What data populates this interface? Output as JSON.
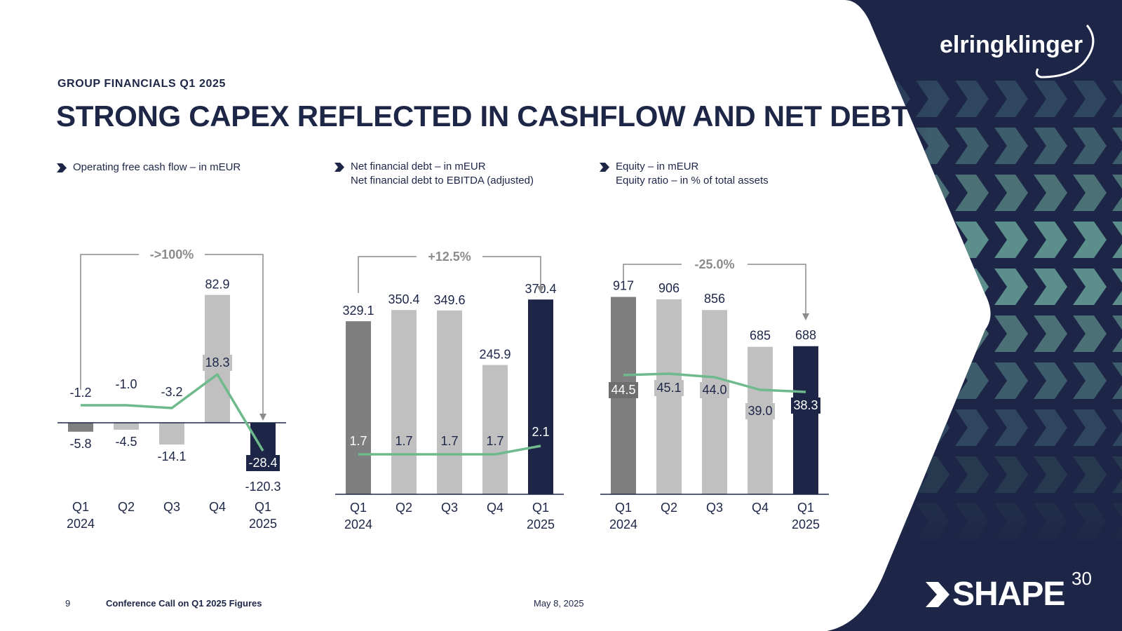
{
  "header": {
    "section_label": "GROUP FINANCIALS Q1 2025",
    "title": "STRONG CAPEX REFLECTED IN CASHFLOW AND NET DEBT"
  },
  "brand": {
    "logo_text": "elringklinger",
    "shape_text": "SHAPE",
    "shape_superscript": "30",
    "navy": "#1d2647",
    "teal": "#5c8f8b",
    "line_green": "#6fba8c"
  },
  "footer": {
    "page_number": "9",
    "event": "Conference Call on Q1 2025 Figures",
    "date": "May 8, 2025"
  },
  "chart_data": [
    {
      "type": "bar",
      "legend": [
        "Operating free cash flow – in mEUR"
      ],
      "categories": [
        "Q1\n2024",
        "Q2",
        "Q3",
        "Q4",
        "Q1\n2025"
      ],
      "series": [
        {
          "name": "Operating free cash flow – in mEUR",
          "type": "bar",
          "values": [
            -5.8,
            -4.5,
            -14.1,
            82.9,
            -28.4
          ],
          "labels": [
            "-5.8",
            "-4.5",
            "-14.1",
            "82.9",
            "-28.4"
          ]
        },
        {
          "type": "line",
          "values": [
            -1.2,
            -1.0,
            -3.2,
            18.3,
            -120.3
          ],
          "labels": [
            "-1.2",
            "-1.0",
            "-3.2",
            "18.3",
            "-120.3"
          ]
        }
      ],
      "annotation": "->100%",
      "bar_colors": [
        "#7f7f7f",
        "#c0c0c0",
        "#c0c0c0",
        "#c0c0c0",
        "#1d2647"
      ]
    },
    {
      "type": "bar",
      "legend": [
        "Net financial debt – in mEUR",
        "Net financial debt to EBITDA (adjusted)"
      ],
      "categories": [
        "Q1\n2024",
        "Q2",
        "Q3",
        "Q4",
        "Q1\n2025"
      ],
      "series": [
        {
          "name": "Net financial debt – in mEUR",
          "type": "bar",
          "values": [
            329.1,
            350.4,
            349.6,
            245.9,
            370.4
          ],
          "labels": [
            "329.1",
            "350.4",
            "349.6",
            "245.9",
            "370.4"
          ]
        },
        {
          "name": "Net financial debt to EBITDA (adjusted)",
          "type": "line",
          "values": [
            1.7,
            1.7,
            1.7,
            1.7,
            2.1
          ],
          "labels": [
            "1.7",
            "1.7",
            "1.7",
            "1.7",
            "2.1"
          ]
        }
      ],
      "annotation": "+12.5%",
      "bar_colors": [
        "#7f7f7f",
        "#c0c0c0",
        "#c0c0c0",
        "#c0c0c0",
        "#1d2647"
      ]
    },
    {
      "type": "bar",
      "legend": [
        "Equity – in mEUR",
        "Equity ratio – in % of total assets"
      ],
      "categories": [
        "Q1\n2024",
        "Q2",
        "Q3",
        "Q4",
        "Q1\n2025"
      ],
      "series": [
        {
          "name": "Equity – in mEUR",
          "type": "bar",
          "values": [
            917,
            906,
            856,
            685,
            688
          ],
          "labels": [
            "917",
            "906",
            "856",
            "685",
            "688"
          ]
        },
        {
          "name": "Equity ratio – in % of total assets",
          "type": "line",
          "values": [
            44.5,
            45.1,
            44.0,
            39.0,
            38.3
          ],
          "labels": [
            "44.5",
            "45.1",
            "44.0",
            "39.0",
            "38.3"
          ]
        }
      ],
      "annotation": "-25.0%",
      "bar_colors": [
        "#7f7f7f",
        "#c0c0c0",
        "#c0c0c0",
        "#c0c0c0",
        "#1d2647"
      ]
    }
  ]
}
